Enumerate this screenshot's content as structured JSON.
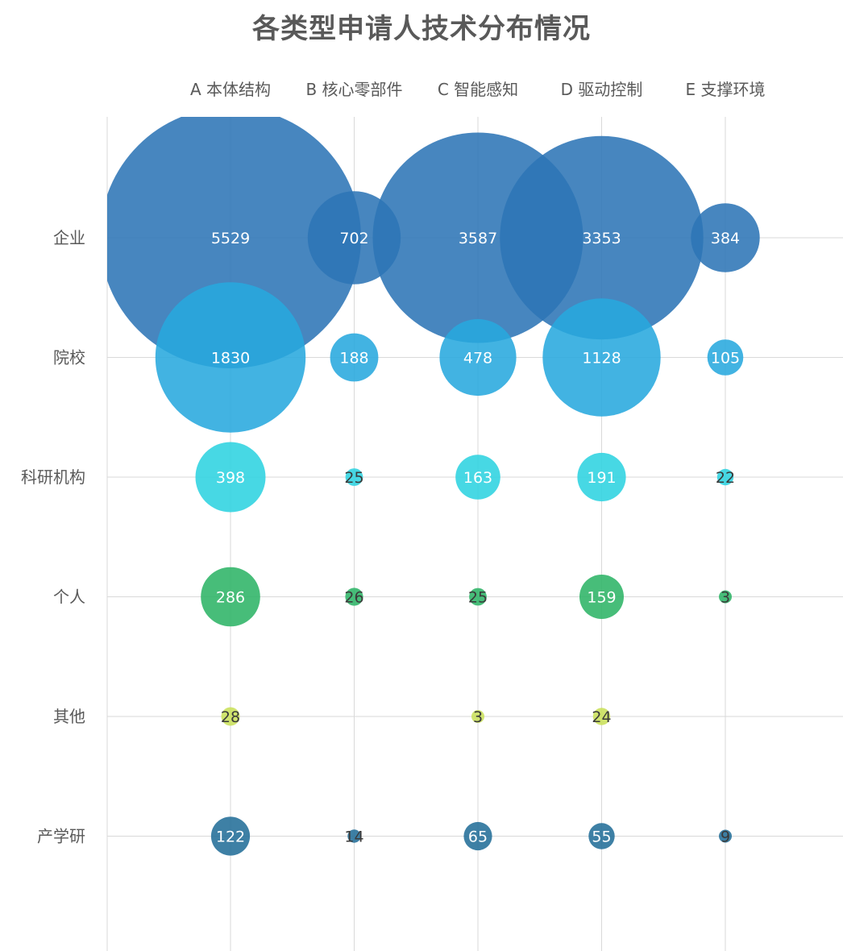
{
  "chart_data": {
    "type": "bubble",
    "title": "各类型申请人技术分布情况",
    "columns": [
      "A 本体结构",
      "B 核心零部件",
      "C 智能感知",
      "D 驱动控制",
      "E 支撑环境"
    ],
    "rows": [
      {
        "name": "企业",
        "color": "#2E75B6",
        "values": [
          5529,
          702,
          3587,
          3353,
          384
        ]
      },
      {
        "name": "院校",
        "color": "#28A9DE",
        "values": [
          1830,
          188,
          478,
          1128,
          105
        ]
      },
      {
        "name": "科研机构",
        "color": "#2ED3E0",
        "values": [
          398,
          25,
          163,
          191,
          22
        ]
      },
      {
        "name": "个人",
        "color": "#2DB467",
        "values": [
          286,
          26,
          25,
          159,
          3
        ]
      },
      {
        "name": "其他",
        "color": "#C9E05A",
        "values": [
          28,
          null,
          3,
          24,
          null
        ]
      },
      {
        "name": "产学研",
        "color": "#236E99",
        "values": [
          122,
          14,
          65,
          55,
          9
        ]
      }
    ],
    "grid": true,
    "legend": "none"
  }
}
